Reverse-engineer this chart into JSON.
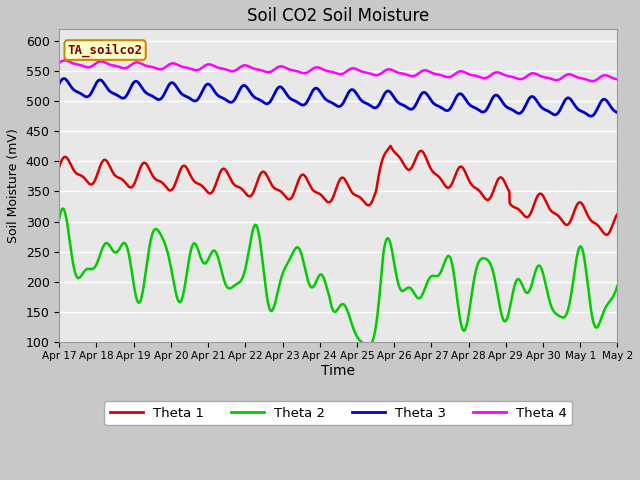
{
  "title": "Soil CO2 Soil Moisture",
  "xlabel": "Time",
  "ylabel": "Soil Moisture (mV)",
  "annotation": "TA_soilco2",
  "ylim": [
    100,
    620
  ],
  "yticks": [
    100,
    150,
    200,
    250,
    300,
    350,
    400,
    450,
    500,
    550,
    600
  ],
  "plot_bg_color": "#e8e8e8",
  "fig_bg_color": "#c8c8c8",
  "grid_color": "#ffffff",
  "series": {
    "Theta 1": {
      "color": "#dd0000",
      "lw": 1.8
    },
    "Theta 2": {
      "color": "#00cc00",
      "lw": 1.8
    },
    "Theta 3": {
      "color": "#0000cc",
      "lw": 2.0
    },
    "Theta 4": {
      "color": "#ff00ff",
      "lw": 1.8
    }
  },
  "x_tick_labels": [
    "Apr 17",
    "Apr 18",
    "Apr 19",
    "Apr 20",
    "Apr 21",
    "Apr 22",
    "Apr 23",
    "Apr 24",
    "Apr 25",
    "Apr 26",
    "Apr 27",
    "Apr 28",
    "Apr 29",
    "Apr 30",
    "May 1",
    "May 2"
  ],
  "n_points": 2000,
  "t_max": 15.5
}
